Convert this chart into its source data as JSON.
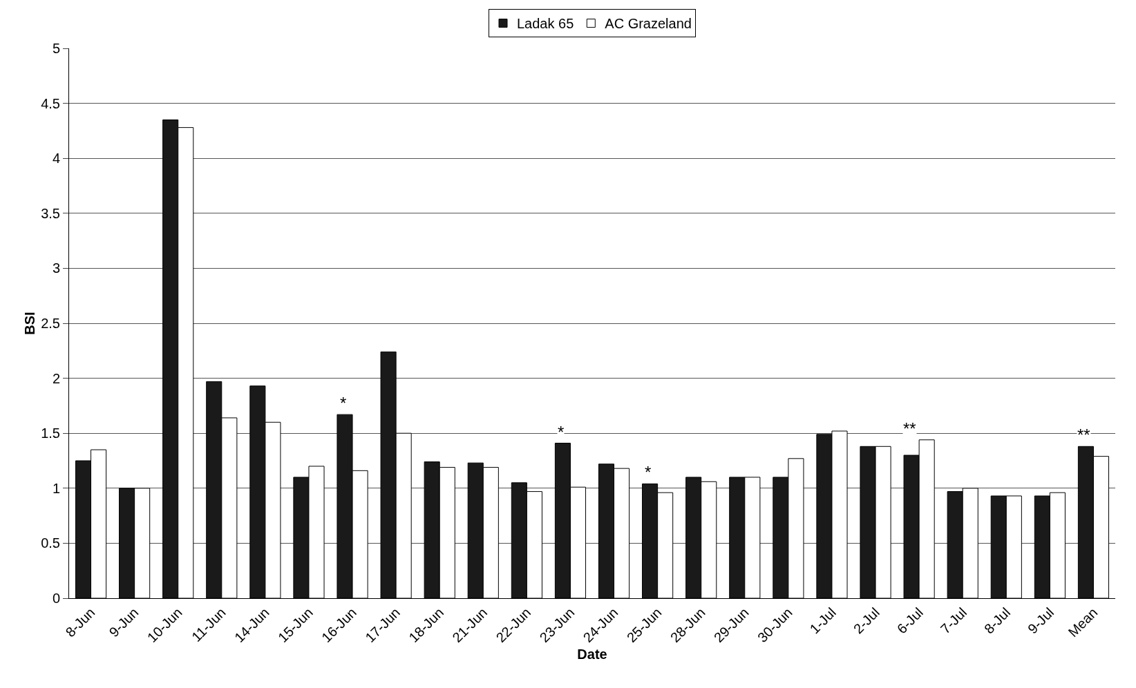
{
  "chart_data": {
    "type": "bar",
    "xlabel": "Date",
    "ylabel": "BSI",
    "categories": [
      "8-Jun",
      "9-Jun",
      "10-Jun",
      "11-Jun",
      "14-Jun",
      "15-Jun",
      "16-Jun",
      "17-Jun",
      "18-Jun",
      "21-Jun",
      "22-Jun",
      "23-Jun",
      "24-Jun",
      "25-Jun",
      "28-Jun",
      "29-Jun",
      "30-Jun",
      "1-Jul",
      "2-Jul",
      "6-Jul",
      "7-Jul",
      "8-Jul",
      "9-Jul",
      "Mean"
    ],
    "series": [
      {
        "name": "Ladak 65",
        "color": "#1a1a1a",
        "values": [
          1.25,
          1.0,
          4.35,
          1.97,
          1.93,
          1.1,
          1.67,
          2.24,
          1.24,
          1.23,
          1.05,
          1.41,
          1.22,
          1.04,
          1.1,
          1.1,
          1.1,
          1.49,
          1.38,
          1.3,
          0.97,
          0.93,
          0.93,
          1.38
        ]
      },
      {
        "name": "AC Grazeland",
        "color": "#ffffff",
        "values": [
          1.35,
          1.0,
          4.28,
          1.64,
          1.6,
          1.2,
          1.16,
          1.5,
          1.19,
          1.19,
          0.97,
          1.01,
          1.18,
          0.96,
          1.06,
          1.1,
          1.27,
          1.52,
          1.38,
          1.44,
          1.0,
          0.93,
          0.96,
          1.29
        ]
      }
    ],
    "ylim": [
      0,
      5
    ],
    "yticks": [
      0,
      0.5,
      1,
      1.5,
      2,
      2.5,
      3,
      3.5,
      4,
      4.5,
      5
    ],
    "grid": "y",
    "legend": "top",
    "annotations": [
      {
        "text": "*",
        "x": "16-Jun",
        "y": 1.67
      },
      {
        "text": "*",
        "x": "23-Jun",
        "y": 1.41
      },
      {
        "text": "*",
        "x": "25-Jun",
        "y": 1.04
      },
      {
        "text": "**",
        "x": "6-Jul",
        "y": 1.44
      },
      {
        "text": "**",
        "x": "Mean",
        "y": 1.38
      }
    ]
  }
}
